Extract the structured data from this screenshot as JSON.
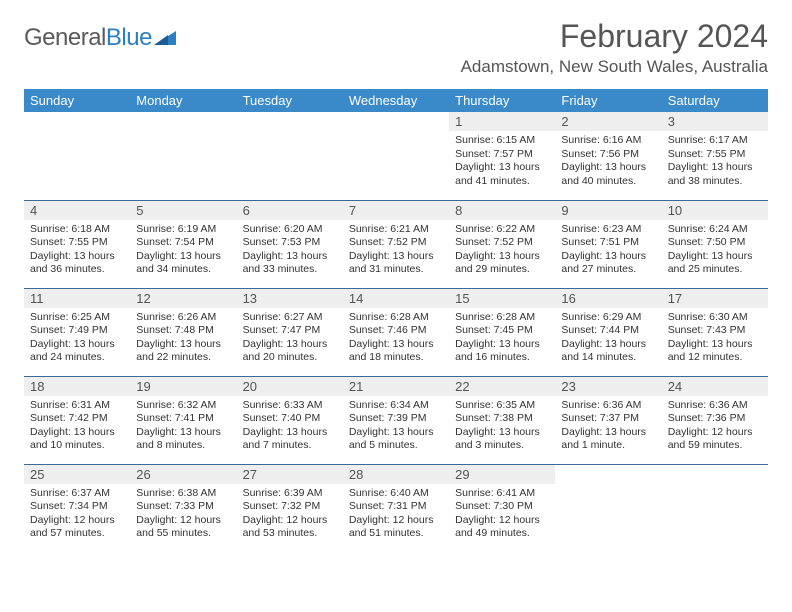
{
  "logo": {
    "word1": "General",
    "word2": "Blue"
  },
  "title": "February 2024",
  "location": "Adamstown, New South Wales, Australia",
  "colors": {
    "header_bg": "#3a89c9",
    "header_text": "#ffffff",
    "daynum_bg": "#eeeeee",
    "row_border": "#3a6a9a",
    "text": "#333333",
    "title_text": "#555555"
  },
  "days_of_week": [
    "Sunday",
    "Monday",
    "Tuesday",
    "Wednesday",
    "Thursday",
    "Friday",
    "Saturday"
  ],
  "weeks": [
    [
      {
        "n": "",
        "sunrise": "",
        "sunset": "",
        "daylight": ""
      },
      {
        "n": "",
        "sunrise": "",
        "sunset": "",
        "daylight": ""
      },
      {
        "n": "",
        "sunrise": "",
        "sunset": "",
        "daylight": ""
      },
      {
        "n": "",
        "sunrise": "",
        "sunset": "",
        "daylight": ""
      },
      {
        "n": "1",
        "sunrise": "Sunrise: 6:15 AM",
        "sunset": "Sunset: 7:57 PM",
        "daylight": "Daylight: 13 hours and 41 minutes."
      },
      {
        "n": "2",
        "sunrise": "Sunrise: 6:16 AM",
        "sunset": "Sunset: 7:56 PM",
        "daylight": "Daylight: 13 hours and 40 minutes."
      },
      {
        "n": "3",
        "sunrise": "Sunrise: 6:17 AM",
        "sunset": "Sunset: 7:55 PM",
        "daylight": "Daylight: 13 hours and 38 minutes."
      }
    ],
    [
      {
        "n": "4",
        "sunrise": "Sunrise: 6:18 AM",
        "sunset": "Sunset: 7:55 PM",
        "daylight": "Daylight: 13 hours and 36 minutes."
      },
      {
        "n": "5",
        "sunrise": "Sunrise: 6:19 AM",
        "sunset": "Sunset: 7:54 PM",
        "daylight": "Daylight: 13 hours and 34 minutes."
      },
      {
        "n": "6",
        "sunrise": "Sunrise: 6:20 AM",
        "sunset": "Sunset: 7:53 PM",
        "daylight": "Daylight: 13 hours and 33 minutes."
      },
      {
        "n": "7",
        "sunrise": "Sunrise: 6:21 AM",
        "sunset": "Sunset: 7:52 PM",
        "daylight": "Daylight: 13 hours and 31 minutes."
      },
      {
        "n": "8",
        "sunrise": "Sunrise: 6:22 AM",
        "sunset": "Sunset: 7:52 PM",
        "daylight": "Daylight: 13 hours and 29 minutes."
      },
      {
        "n": "9",
        "sunrise": "Sunrise: 6:23 AM",
        "sunset": "Sunset: 7:51 PM",
        "daylight": "Daylight: 13 hours and 27 minutes."
      },
      {
        "n": "10",
        "sunrise": "Sunrise: 6:24 AM",
        "sunset": "Sunset: 7:50 PM",
        "daylight": "Daylight: 13 hours and 25 minutes."
      }
    ],
    [
      {
        "n": "11",
        "sunrise": "Sunrise: 6:25 AM",
        "sunset": "Sunset: 7:49 PM",
        "daylight": "Daylight: 13 hours and 24 minutes."
      },
      {
        "n": "12",
        "sunrise": "Sunrise: 6:26 AM",
        "sunset": "Sunset: 7:48 PM",
        "daylight": "Daylight: 13 hours and 22 minutes."
      },
      {
        "n": "13",
        "sunrise": "Sunrise: 6:27 AM",
        "sunset": "Sunset: 7:47 PM",
        "daylight": "Daylight: 13 hours and 20 minutes."
      },
      {
        "n": "14",
        "sunrise": "Sunrise: 6:28 AM",
        "sunset": "Sunset: 7:46 PM",
        "daylight": "Daylight: 13 hours and 18 minutes."
      },
      {
        "n": "15",
        "sunrise": "Sunrise: 6:28 AM",
        "sunset": "Sunset: 7:45 PM",
        "daylight": "Daylight: 13 hours and 16 minutes."
      },
      {
        "n": "16",
        "sunrise": "Sunrise: 6:29 AM",
        "sunset": "Sunset: 7:44 PM",
        "daylight": "Daylight: 13 hours and 14 minutes."
      },
      {
        "n": "17",
        "sunrise": "Sunrise: 6:30 AM",
        "sunset": "Sunset: 7:43 PM",
        "daylight": "Daylight: 13 hours and 12 minutes."
      }
    ],
    [
      {
        "n": "18",
        "sunrise": "Sunrise: 6:31 AM",
        "sunset": "Sunset: 7:42 PM",
        "daylight": "Daylight: 13 hours and 10 minutes."
      },
      {
        "n": "19",
        "sunrise": "Sunrise: 6:32 AM",
        "sunset": "Sunset: 7:41 PM",
        "daylight": "Daylight: 13 hours and 8 minutes."
      },
      {
        "n": "20",
        "sunrise": "Sunrise: 6:33 AM",
        "sunset": "Sunset: 7:40 PM",
        "daylight": "Daylight: 13 hours and 7 minutes."
      },
      {
        "n": "21",
        "sunrise": "Sunrise: 6:34 AM",
        "sunset": "Sunset: 7:39 PM",
        "daylight": "Daylight: 13 hours and 5 minutes."
      },
      {
        "n": "22",
        "sunrise": "Sunrise: 6:35 AM",
        "sunset": "Sunset: 7:38 PM",
        "daylight": "Daylight: 13 hours and 3 minutes."
      },
      {
        "n": "23",
        "sunrise": "Sunrise: 6:36 AM",
        "sunset": "Sunset: 7:37 PM",
        "daylight": "Daylight: 13 hours and 1 minute."
      },
      {
        "n": "24",
        "sunrise": "Sunrise: 6:36 AM",
        "sunset": "Sunset: 7:36 PM",
        "daylight": "Daylight: 12 hours and 59 minutes."
      }
    ],
    [
      {
        "n": "25",
        "sunrise": "Sunrise: 6:37 AM",
        "sunset": "Sunset: 7:34 PM",
        "daylight": "Daylight: 12 hours and 57 minutes."
      },
      {
        "n": "26",
        "sunrise": "Sunrise: 6:38 AM",
        "sunset": "Sunset: 7:33 PM",
        "daylight": "Daylight: 12 hours and 55 minutes."
      },
      {
        "n": "27",
        "sunrise": "Sunrise: 6:39 AM",
        "sunset": "Sunset: 7:32 PM",
        "daylight": "Daylight: 12 hours and 53 minutes."
      },
      {
        "n": "28",
        "sunrise": "Sunrise: 6:40 AM",
        "sunset": "Sunset: 7:31 PM",
        "daylight": "Daylight: 12 hours and 51 minutes."
      },
      {
        "n": "29",
        "sunrise": "Sunrise: 6:41 AM",
        "sunset": "Sunset: 7:30 PM",
        "daylight": "Daylight: 12 hours and 49 minutes."
      },
      {
        "n": "",
        "sunrise": "",
        "sunset": "",
        "daylight": ""
      },
      {
        "n": "",
        "sunrise": "",
        "sunset": "",
        "daylight": ""
      }
    ]
  ]
}
